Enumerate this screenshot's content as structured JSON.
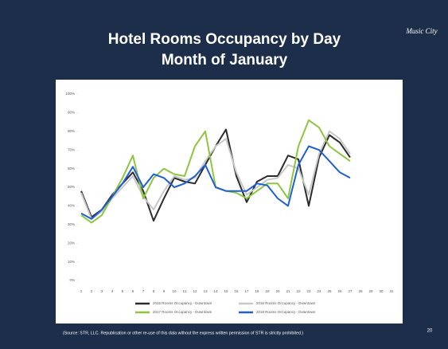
{
  "chart_data": {
    "type": "line",
    "title": "Hotel Rooms Occupancy by Day",
    "subtitle": "Month of January",
    "logo": "Music City",
    "source": "(Source: STR, LLC. Republication or other re-use of this data without the express written permission of STR is strictly prohibited.)",
    "page_number": "20",
    "categories": [
      "1",
      "2",
      "3",
      "4",
      "5",
      "6",
      "7",
      "8",
      "9",
      "10",
      "11",
      "12",
      "13",
      "14",
      "15",
      "16",
      "17",
      "18",
      "19",
      "20",
      "21",
      "22",
      "23",
      "24",
      "25",
      "26",
      "27",
      "28",
      "29",
      "30",
      "31"
    ],
    "ylim": [
      0,
      100
    ],
    "yticks": [
      {
        "value": 0,
        "label": "0%"
      },
      {
        "value": 10,
        "label": "10%"
      },
      {
        "value": 20,
        "label": "20%"
      },
      {
        "value": 30,
        "label": "30%"
      },
      {
        "value": 40,
        "label": "40%"
      },
      {
        "value": 50,
        "label": "50%"
      },
      {
        "value": 60,
        "label": "60%"
      },
      {
        "value": 70,
        "label": "70%"
      },
      {
        "value": 80,
        "label": "80%"
      },
      {
        "value": 90,
        "label": "90%"
      },
      {
        "value": 100,
        "label": "100%"
      }
    ],
    "series": [
      {
        "name": "2015 Rooms Occupancy - Downtown",
        "color": "#2b2b2b",
        "values": [
          48,
          34,
          38,
          46,
          52,
          58,
          48,
          32,
          44,
          55,
          53,
          52,
          62,
          72,
          81,
          56,
          42,
          53,
          56,
          56,
          67,
          65,
          40,
          66,
          78,
          74,
          66,
          null,
          null,
          null,
          null
        ]
      },
      {
        "name": "2016 Rooms Occupancy - Downtown",
        "color": "#c8c8c8",
        "values": [
          47,
          33,
          37,
          44,
          50,
          56,
          45,
          38,
          48,
          56,
          54,
          55,
          64,
          72,
          76,
          58,
          46,
          50,
          54,
          55,
          62,
          60,
          46,
          68,
          80,
          76,
          68,
          null,
          null,
          null,
          null
        ]
      },
      {
        "name": "2017 Rooms Occupancy - Downtown",
        "color": "#8dc63f",
        "values": [
          35,
          31,
          35,
          45,
          55,
          67,
          44,
          55,
          60,
          57,
          56,
          72,
          80,
          50,
          48,
          47,
          44,
          48,
          52,
          52,
          44,
          72,
          86,
          82,
          72,
          68,
          64,
          null,
          null,
          null,
          null
        ]
      },
      {
        "name": "2018 Rooms Occupancy - Downtown",
        "color": "#1f5fd6",
        "values": [
          36,
          33,
          38,
          45,
          52,
          61,
          50,
          57,
          55,
          50,
          52,
          56,
          62,
          50,
          48,
          48,
          48,
          52,
          51,
          44,
          40,
          62,
          72,
          70,
          64,
          58,
          55,
          null,
          null,
          null,
          null
        ]
      }
    ]
  }
}
